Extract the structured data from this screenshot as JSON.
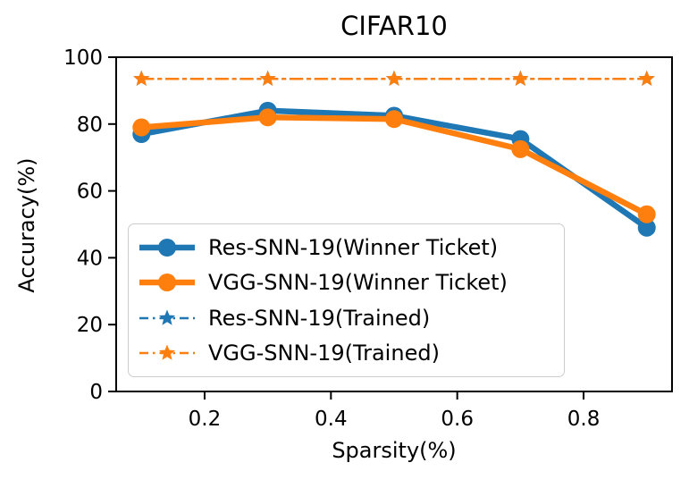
{
  "title": "CIFAR10",
  "colors": {
    "blue": "#1f77b4",
    "orange": "#ff7f0e",
    "axis": "#000000",
    "legend_border": "#cccccc",
    "background": "#ffffff"
  },
  "chart_data": {
    "type": "line",
    "title": "CIFAR10",
    "xlabel": "Sparsity(%)",
    "ylabel": "Accuracy(%)",
    "x": [
      0.1,
      0.3,
      0.5,
      0.7,
      0.9
    ],
    "xlim": [
      0.06,
      0.94
    ],
    "ylim": [
      0,
      100
    ],
    "xticks": [
      0.2,
      0.4,
      0.6,
      0.8
    ],
    "yticks": [
      0,
      20,
      40,
      60,
      80,
      100
    ],
    "grid": false,
    "legend_position": "lower left",
    "series": [
      {
        "name": "Res-SNN-19(Winner Ticket)",
        "color": "#1f77b4",
        "style": "solid",
        "marker": "circle",
        "linewidth": 6.5,
        "values": [
          77,
          84,
          82.5,
          75.5,
          49
        ]
      },
      {
        "name": "VGG-SNN-19(Winner Ticket)",
        "color": "#ff7f0e",
        "style": "solid",
        "marker": "circle",
        "linewidth": 6.5,
        "values": [
          79,
          82,
          81.5,
          72.5,
          53
        ]
      },
      {
        "name": "Res-SNN-19(Trained)",
        "color": "#1f77b4",
        "style": "dashdot",
        "marker": "star",
        "linewidth": 2.5,
        "values": [
          93.5,
          93.5,
          93.5,
          93.5,
          93.5
        ]
      },
      {
        "name": "VGG-SNN-19(Trained)",
        "color": "#ff7f0e",
        "style": "dashdot",
        "marker": "star",
        "linewidth": 2.5,
        "values": [
          93.5,
          93.5,
          93.5,
          93.5,
          93.5
        ]
      }
    ]
  }
}
